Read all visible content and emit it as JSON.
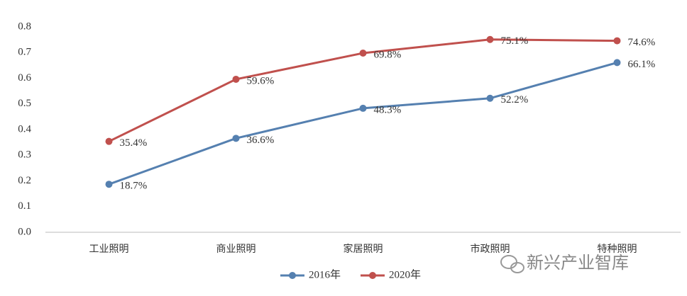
{
  "chart_data": {
    "type": "line",
    "categories": [
      "工业照明",
      "商业照明",
      "家居照明",
      "市政照明",
      "特种照明"
    ],
    "series": [
      {
        "name": "2016年",
        "color": "#5580b0",
        "values": [
          0.187,
          0.366,
          0.483,
          0.522,
          0.661
        ],
        "value_labels": [
          "18.7%",
          "36.6%",
          "48.3%",
          "52.2%",
          "66.1%"
        ]
      },
      {
        "name": "2020年",
        "color": "#c0504d",
        "values": [
          0.354,
          0.596,
          0.698,
          0.751,
          0.746
        ],
        "value_labels": [
          "35.4%",
          "59.6%",
          "69.8%",
          "75.1%",
          "74.6%"
        ]
      }
    ],
    "ylim": [
      0,
      0.8
    ],
    "yticks": [
      {
        "value": 0,
        "label": "0.0"
      },
      0.1,
      0.2,
      0.3,
      0.4,
      0.5,
      0.6,
      0.7,
      0.8
    ],
    "grid": false,
    "legend": "bottom"
  },
  "watermark": "新兴产业智库"
}
